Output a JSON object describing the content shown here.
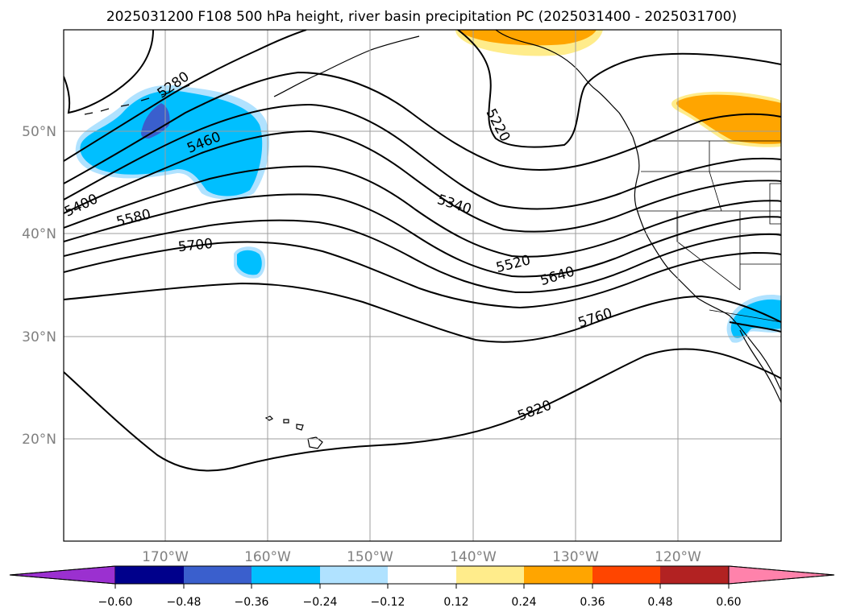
{
  "title": "2025031200 F108 500 hPa height, river basin precipitation PC (2025031400 - 2025031700)",
  "lat_labels": [
    "50°N",
    "40°N",
    "30°N",
    "20°N"
  ],
  "lon_labels": [
    "170°W",
    "160°W",
    "150°W",
    "140°W",
    "130°W",
    "120°W"
  ],
  "contour_labels": [
    "5280",
    "5220",
    "5460",
    "5340",
    "5400",
    "5580",
    "5700",
    "5520",
    "5640",
    "5760",
    "5820"
  ],
  "colorbar": {
    "ticks": [
      "−0.60",
      "−0.48",
      "−0.36",
      "−0.24",
      "−0.12",
      "0.12",
      "0.24",
      "0.36",
      "0.48",
      "0.60"
    ],
    "colors": [
      "#9b30d0",
      "#00008b",
      "#3a5fcd",
      "#00bfff",
      "#b0e2ff",
      "#ffffff",
      "#ffec8b",
      "#ffa500",
      "#ff4500",
      "#b22222",
      "#ff82ab"
    ]
  },
  "shading_colors": {
    "neg_strong": "#3a5fcd",
    "neg_mid": "#00bfff",
    "neg_weak": "#b0e2ff",
    "pos_weak": "#ffec8b",
    "pos_mid": "#ffa500"
  }
}
